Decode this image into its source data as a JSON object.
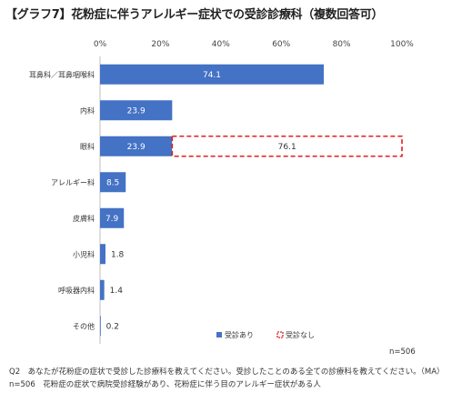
{
  "chart_data": {
    "type": "bar",
    "orientation": "horizontal",
    "stacked": true,
    "title": "【グラフ7】花粉症に伴うアレルギー症状での受診診療科（複数回答可）",
    "x_axis": {
      "range": [
        0,
        100
      ],
      "ticks": [
        0,
        20,
        40,
        60,
        80,
        100
      ],
      "tick_labels": [
        "0%",
        "20%",
        "40%",
        "60%",
        "80%",
        "100%"
      ],
      "position": "top"
    },
    "categories": [
      "耳鼻科／耳鼻咽喉科",
      "内科",
      "眼科",
      "アレルギー科",
      "皮膚科",
      "小児科",
      "呼吸器内科",
      "その他"
    ],
    "series": [
      {
        "name": "受診あり",
        "color": "#4472c4",
        "style": "solid",
        "values": [
          74.1,
          23.9,
          23.9,
          8.5,
          7.9,
          1.8,
          1.4,
          0.2
        ],
        "labels": [
          "74.1",
          "23.9",
          "23.9",
          "8.5",
          "7.9",
          "1.8",
          "1.4",
          "0.2"
        ]
      },
      {
        "name": "受診なし",
        "color": "#e02020",
        "style": "dashed-outline",
        "values": [
          null,
          null,
          76.1,
          null,
          null,
          null,
          null,
          null
        ],
        "labels": [
          null,
          null,
          "76.1",
          null,
          null,
          null,
          null,
          null
        ]
      }
    ],
    "legend_position": "bottom-right",
    "grid": false
  },
  "sample_size": "n=506",
  "notes": {
    "question": "Q2　あなたが花粉症の症状で受診した診療科を教えてください。受診したことのある全ての診療科を教えてください。（MA）",
    "base": "n=506　花粉症の症状で病院受診経験があり、花粉症に伴う目のアレルギー症状がある人"
  }
}
